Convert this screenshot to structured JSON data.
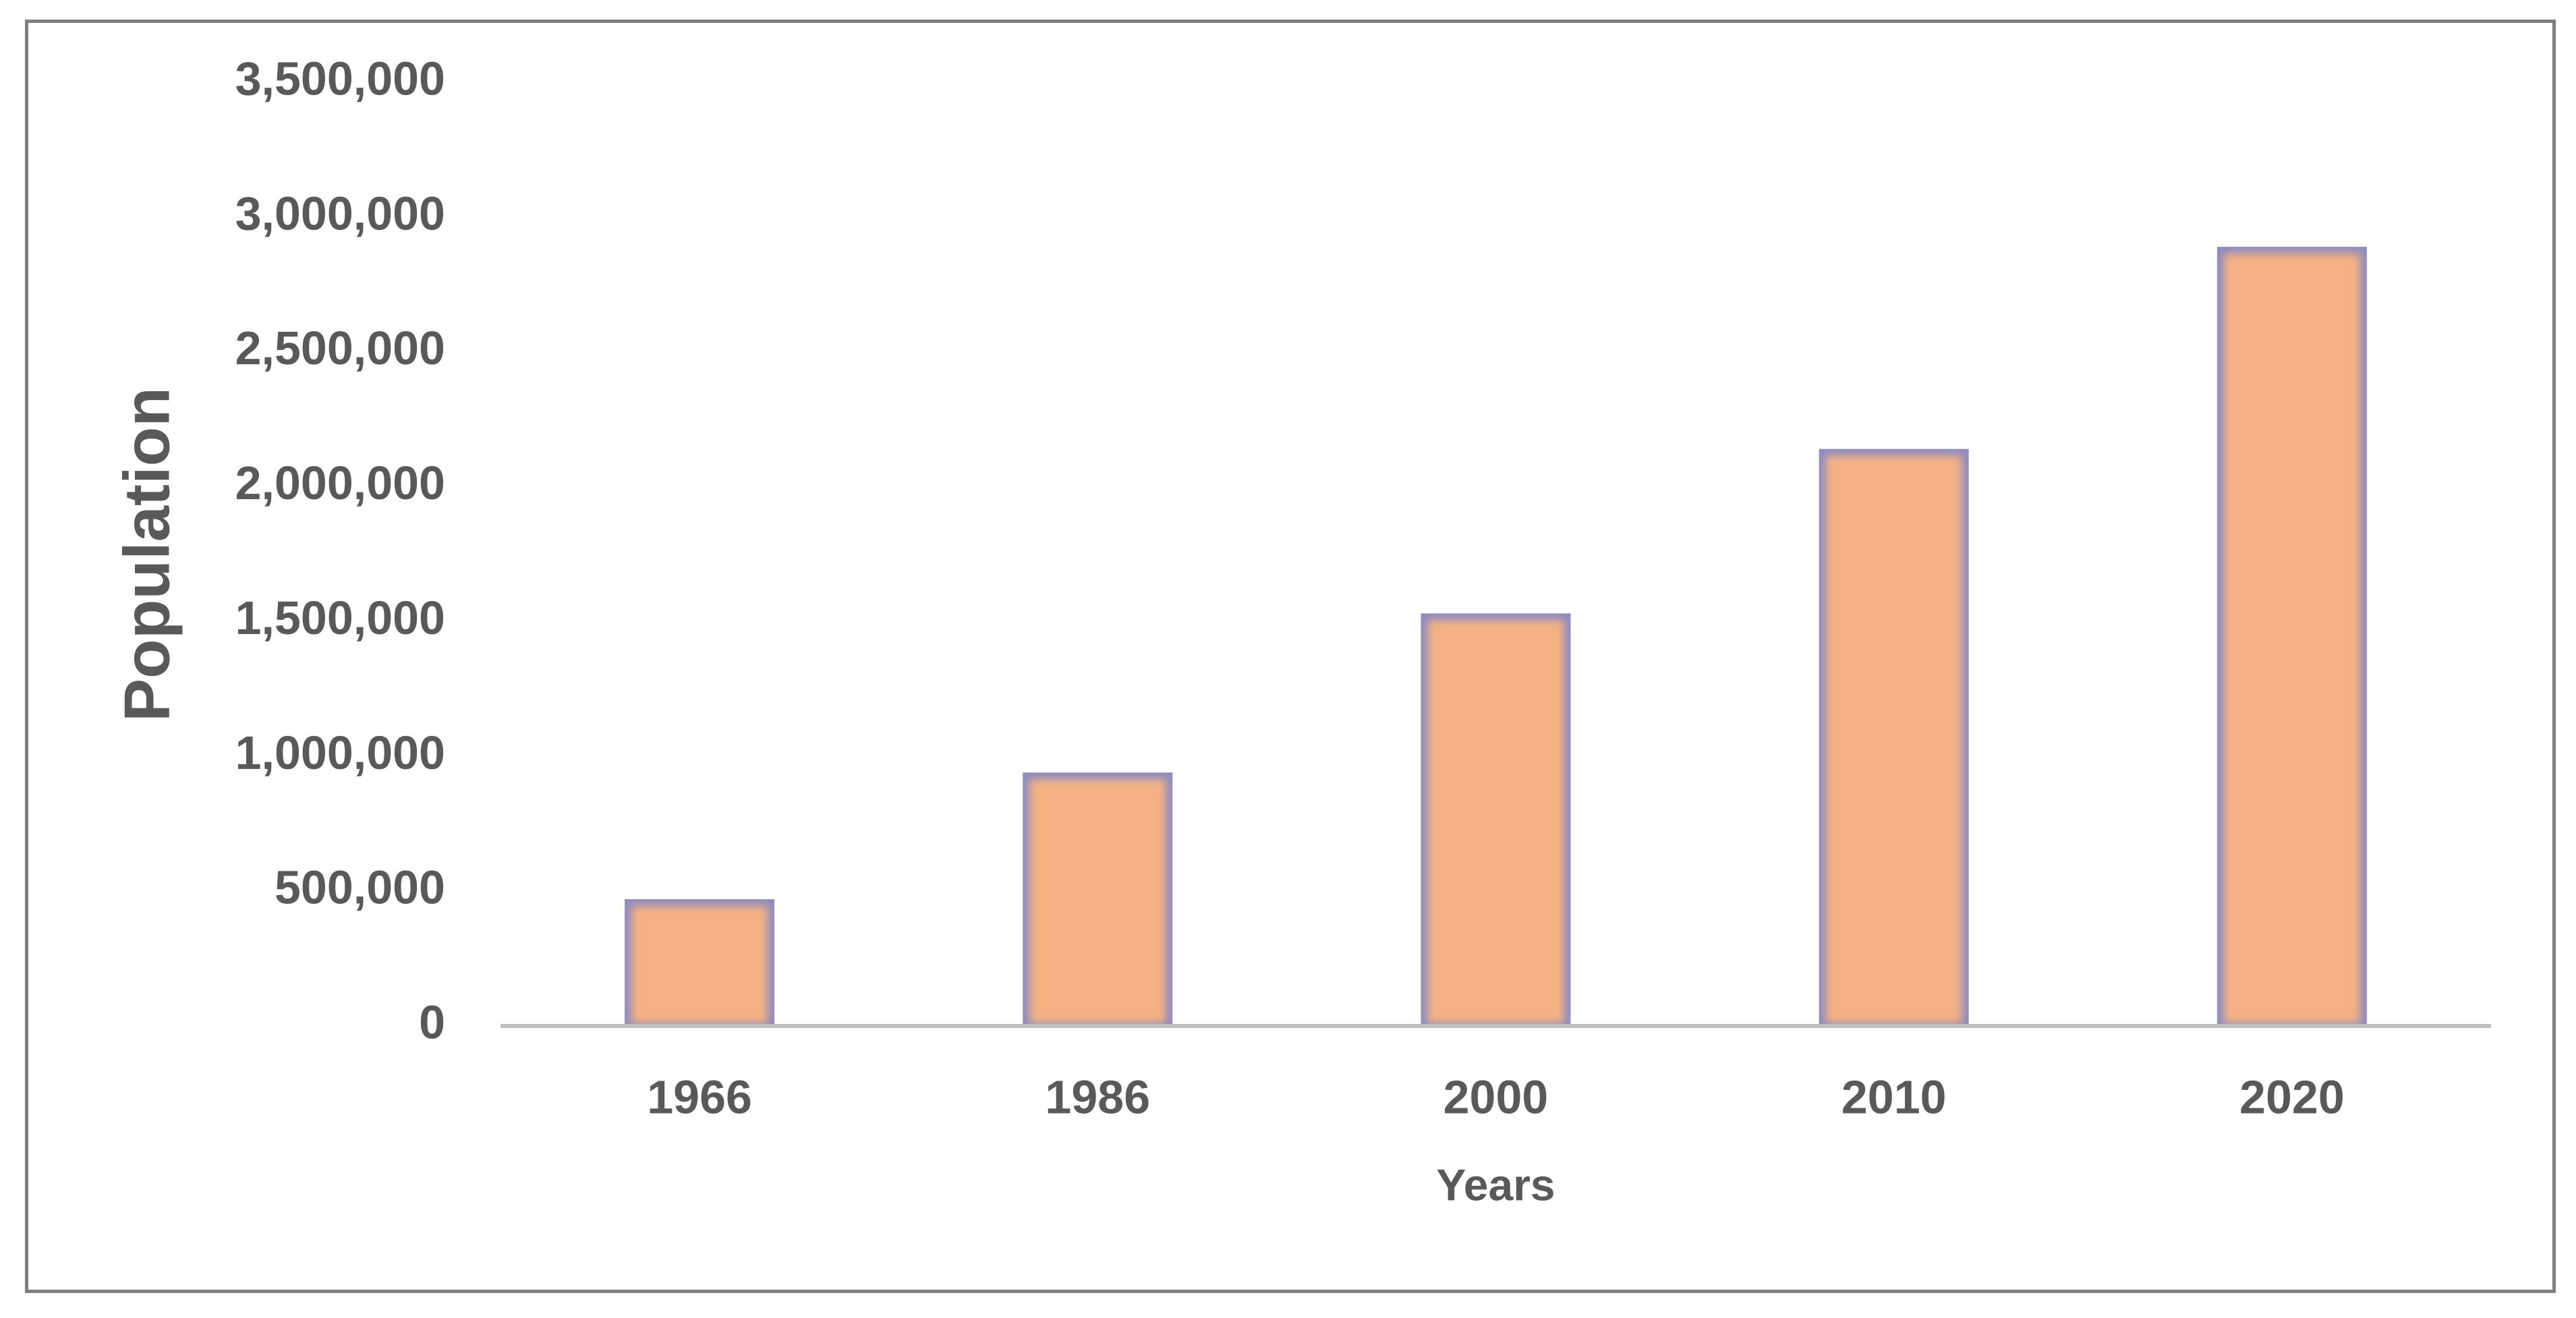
{
  "chart_data": {
    "type": "bar",
    "title": "",
    "xlabel": "Years",
    "ylabel": "Population",
    "categories": [
      "1966",
      "1986",
      "2000",
      "2010",
      "2020"
    ],
    "values": [
      470000,
      940000,
      1530000,
      2140000,
      2890000
    ],
    "ylim": [
      0,
      3500000
    ],
    "yticks": [
      0,
      500000,
      1000000,
      1500000,
      2000000,
      2500000,
      3000000,
      3500000
    ],
    "ytick_labels": [
      "0",
      "500,000",
      "1,000,000",
      "1,500,000",
      "2,000,000",
      "2,500,000",
      "3,000,000",
      "3,500,000"
    ],
    "grid": false,
    "legend": "none",
    "colors": {
      "bar_fill": "#F4B183",
      "bar_edge": "#8E8CC0",
      "axis_line": "#BFBFBF",
      "text": "#595959",
      "frame": "#7F7F7F"
    }
  }
}
